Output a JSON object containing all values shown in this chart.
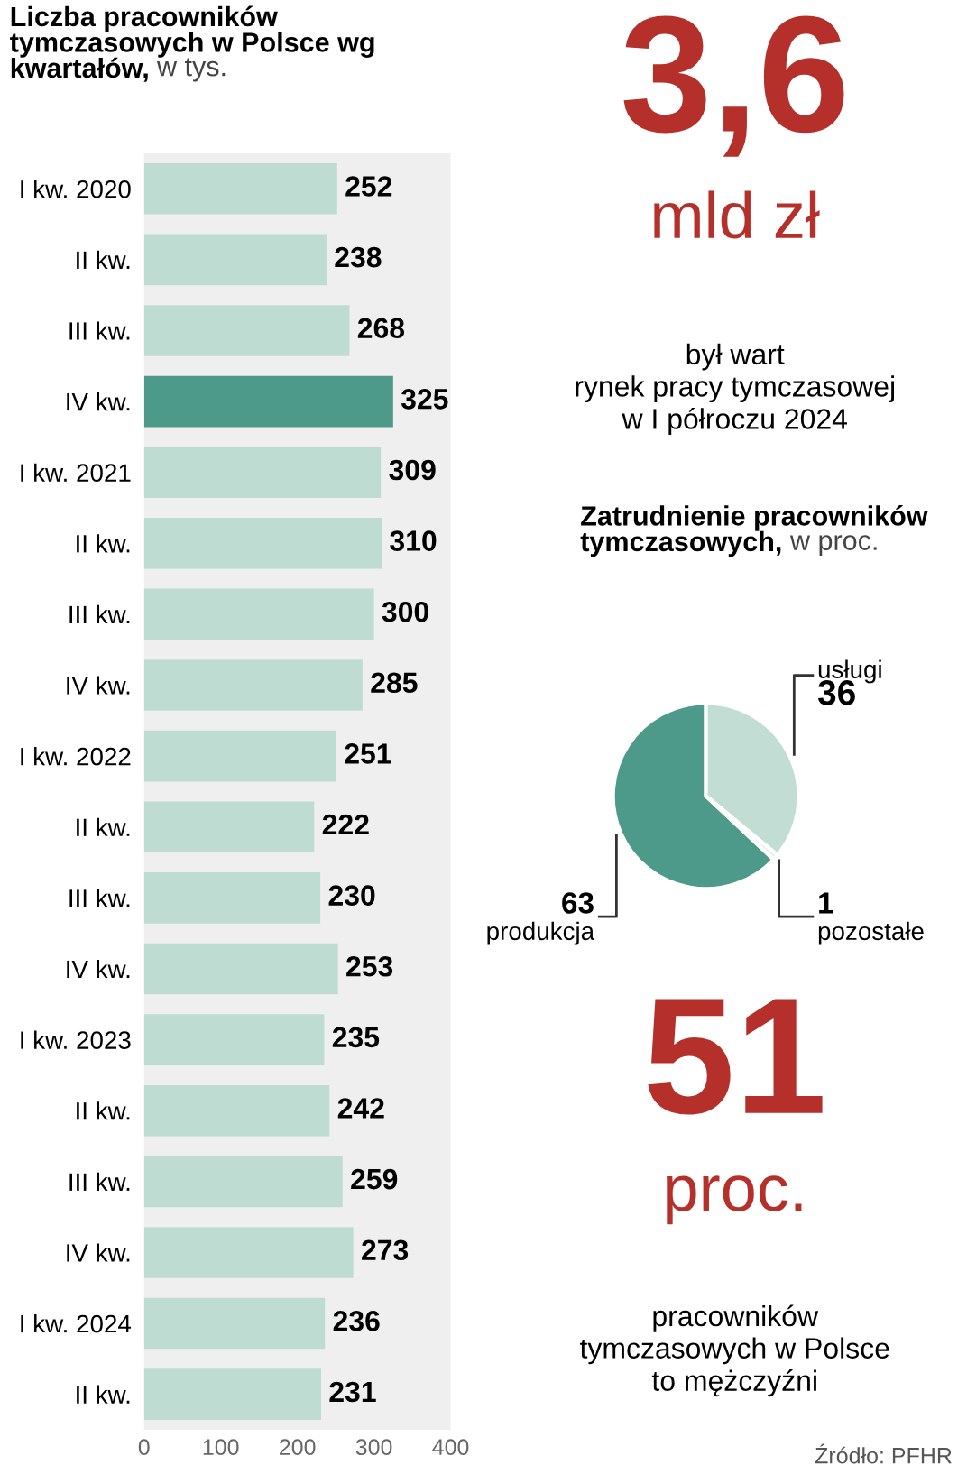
{
  "chart_data": [
    {
      "type": "bar",
      "orientation": "horizontal",
      "title": "Liczba pracowników\ntymczasowych w Polsce wg\nkwartałów,",
      "subtitle": "w tys.",
      "categories": [
        "I kw. 2020",
        "II kw.",
        "III kw.",
        "IV kw.",
        "I kw. 2021",
        "II kw.",
        "III kw.",
        "IV kw.",
        "I kw. 2022",
        "II kw.",
        "III kw.",
        "IV kw.",
        "I kw. 2023",
        "II kw.",
        "III kw.",
        "IV kw.",
        "I kw. 2024",
        "II kw."
      ],
      "values": [
        252,
        238,
        268,
        325,
        309,
        310,
        300,
        285,
        251,
        222,
        230,
        253,
        235,
        242,
        259,
        273,
        236,
        231
      ],
      "colors": [
        "#bfdcd2",
        "#bfdcd2",
        "#bfdcd2",
        "#4e9a8a",
        "#bfdcd2",
        "#bfdcd2",
        "#bfdcd2",
        "#bfdcd2",
        "#bfdcd2",
        "#bfdcd2",
        "#bfdcd2",
        "#bfdcd2",
        "#bfdcd2",
        "#bfdcd2",
        "#bfdcd2",
        "#bfdcd2",
        "#bfdcd2",
        "#bfdcd2"
      ],
      "data_labels": true,
      "xlim": [
        0,
        400
      ],
      "xticks": [
        0,
        100,
        200,
        300,
        400
      ],
      "grid": false,
      "annotations": [
        "Źródło: PFHR"
      ]
    },
    {
      "type": "other",
      "title": "3,6",
      "subtitle": "mld zł",
      "annotations": [
        "był wart\nrynek pracy tymczasowej\nw I półroczu 2024"
      ]
    },
    {
      "type": "pie",
      "title": "Zatrudnienie pracowników\ntymczasowych,",
      "subtitle": "w proc.",
      "categories": [
        "produkcja",
        "usługi",
        "pozostałe"
      ],
      "values": [
        63,
        36,
        1
      ],
      "colors": [
        "#4e9a8a",
        "#c2ddd4",
        "#e4efeb"
      ],
      "data_labels": true
    },
    {
      "type": "other",
      "title": "51",
      "subtitle": "proc.",
      "annotations": [
        "pracowników\ntymczasowych w Polsce\nto mężczyźni"
      ]
    }
  ]
}
